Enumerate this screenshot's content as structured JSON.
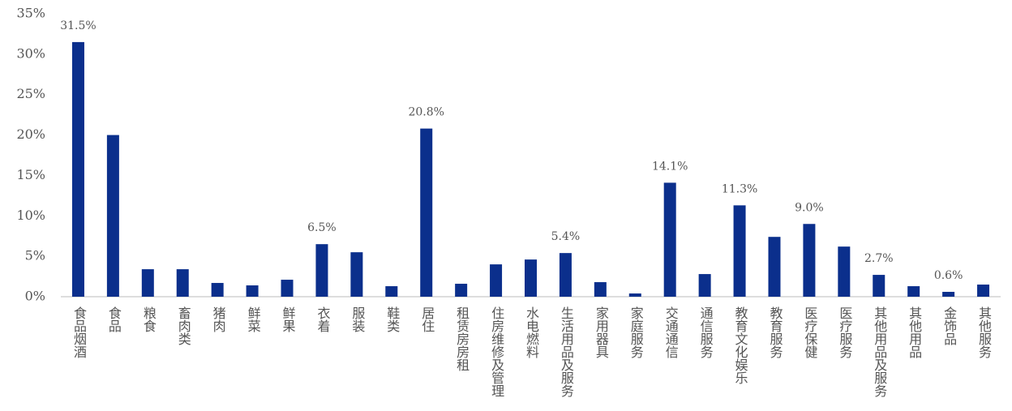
{
  "chart_data": {
    "type": "bar",
    "categories": [
      "食品烟酒",
      "食品",
      "粮食",
      "畜肉类",
      "猪肉",
      "鲜菜",
      "鲜果",
      "衣着",
      "服装",
      "鞋类",
      "居住",
      "租赁房房租",
      "住房维修及管理",
      "水电燃料",
      "生活用品及服务",
      "家用器具",
      "家庭服务",
      "交通通信",
      "通信服务",
      "教育文化娱乐",
      "教育服务",
      "医疗保健",
      "医疗服务",
      "其他用品及服务",
      "其他用品",
      "金饰品",
      "其他服务"
    ],
    "values": [
      31.5,
      20.0,
      3.4,
      3.4,
      1.7,
      1.4,
      2.1,
      6.5,
      5.5,
      1.3,
      20.8,
      1.6,
      4.0,
      4.6,
      5.4,
      1.8,
      0.4,
      14.1,
      2.8,
      11.3,
      7.4,
      9.0,
      6.2,
      2.7,
      1.3,
      0.6,
      1.5
    ],
    "value_labels": [
      "31.5%",
      null,
      null,
      null,
      null,
      null,
      null,
      "6.5%",
      null,
      null,
      "20.8%",
      null,
      null,
      null,
      "5.4%",
      null,
      null,
      "14.1%",
      null,
      "11.3%",
      null,
      "9.0%",
      null,
      "2.7%",
      null,
      "0.6%",
      null
    ],
    "color": "#0b2f8c",
    "ylim": [
      0,
      35
    ],
    "yticks": [
      {
        "value": 0,
        "label": "0%"
      },
      {
        "value": 5,
        "label": "5%"
      },
      {
        "value": 10,
        "label": "10%"
      },
      {
        "value": 15,
        "label": "15%"
      },
      {
        "value": 20,
        "label": "20%"
      },
      {
        "value": 25,
        "label": "25%"
      },
      {
        "value": 30,
        "label": "30%"
      },
      {
        "value": 35,
        "label": "35%"
      }
    ],
    "grid": false
  }
}
